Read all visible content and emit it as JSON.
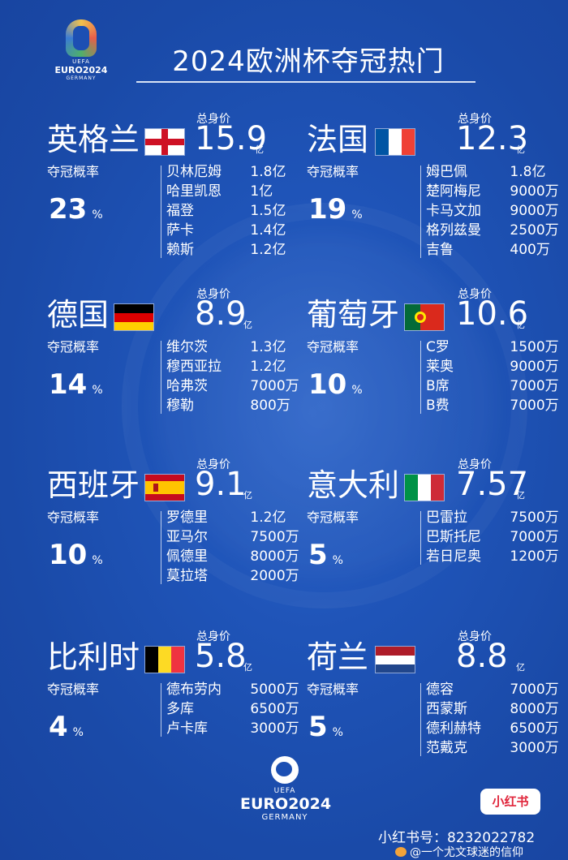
{
  "header": {
    "title": "2024欧洲杯夺冠热门"
  },
  "logo_top": {
    "line1": "UEFA",
    "line2": "EURO2024",
    "line3": "GERMANY"
  },
  "labels": {
    "value_label": "总身价",
    "prob_label": "夺冠概率",
    "percent": "%"
  },
  "teams": [
    {
      "name": "英格兰",
      "flag": "england",
      "value": "15.9",
      "unit": "亿",
      "prob": "23",
      "players": [
        {
          "name": "贝林厄姆",
          "value": "1.8亿"
        },
        {
          "name": "哈里凯恩",
          "value": "1亿"
        },
        {
          "name": "福登",
          "value": "1.5亿"
        },
        {
          "name": "萨卡",
          "value": "1.4亿"
        },
        {
          "name": "赖斯",
          "value": "1.2亿"
        }
      ]
    },
    {
      "name": "法国",
      "flag": "france",
      "value": "12.3",
      "unit": "亿",
      "prob": "19",
      "players": [
        {
          "name": "姆巴佩",
          "value": "1.8亿"
        },
        {
          "name": "楚阿梅尼",
          "value": "9000万"
        },
        {
          "name": "卡马文加",
          "value": "9000万"
        },
        {
          "name": "格列兹曼",
          "value": "2500万"
        },
        {
          "name": "吉鲁",
          "value": "400万"
        }
      ]
    },
    {
      "name": "德国",
      "flag": "germany",
      "value": "8.9",
      "unit": "亿",
      "prob": "14",
      "players": [
        {
          "name": "维尔茨",
          "value": "1.3亿"
        },
        {
          "name": "穆西亚拉",
          "value": "1.2亿"
        },
        {
          "name": "哈弗茨",
          "value": "7000万"
        },
        {
          "name": "穆勒",
          "value": "800万"
        }
      ]
    },
    {
      "name": "葡萄牙",
      "flag": "portugal",
      "value": "10.6",
      "unit": "亿",
      "prob": "10",
      "players": [
        {
          "name": "C罗",
          "value": "1500万"
        },
        {
          "name": "莱奥",
          "value": "9000万"
        },
        {
          "name": "B席",
          "value": "7000万"
        },
        {
          "name": "B费",
          "value": "7000万"
        }
      ]
    },
    {
      "name": "西班牙",
      "flag": "spain",
      "value": "9.1",
      "unit": "亿",
      "prob": "10",
      "players": [
        {
          "name": "罗德里",
          "value": "1.2亿"
        },
        {
          "name": "亚马尔",
          "value": "7500万"
        },
        {
          "name": "佩德里",
          "value": "8000万"
        },
        {
          "name": "莫拉塔",
          "value": "2000万"
        }
      ]
    },
    {
      "name": "意大利",
      "flag": "italy",
      "value": "7.57",
      "unit": "亿",
      "prob": "5",
      "players": [
        {
          "name": "巴雷拉",
          "value": "7500万"
        },
        {
          "name": "巴斯托尼",
          "value": "7000万"
        },
        {
          "name": "若日尼奥",
          "value": "1200万"
        }
      ]
    },
    {
      "name": "比利时",
      "flag": "belgium",
      "value": "5.8",
      "unit": "亿",
      "prob": "4",
      "players": [
        {
          "name": "德布劳内",
          "value": "5000万"
        },
        {
          "name": "多库",
          "value": "6500万"
        },
        {
          "name": "卢卡库",
          "value": "3000万"
        }
      ]
    },
    {
      "name": "荷兰",
      "flag": "netherlands",
      "value": "8.8",
      "unit": "亿",
      "prob": "5",
      "players": [
        {
          "name": "德容",
          "value": "7000万"
        },
        {
          "name": "西蒙斯",
          "value": "8000万"
        },
        {
          "name": "德利赫特",
          "value": "6500万"
        },
        {
          "name": "范戴克",
          "value": "3000万"
        }
      ]
    }
  ],
  "logo_bottom": {
    "uefa": "UEFA",
    "euro": "EURO2024",
    "germany": "GERMANY"
  },
  "watermark": {
    "badge": "小红书",
    "id_label": "小红书号：8232022782",
    "weibo": "@一个尤文球迷的信仰"
  },
  "colors": {
    "background": "#1f54b8",
    "text": "#ffffff",
    "badge_text": "#e0243a"
  }
}
